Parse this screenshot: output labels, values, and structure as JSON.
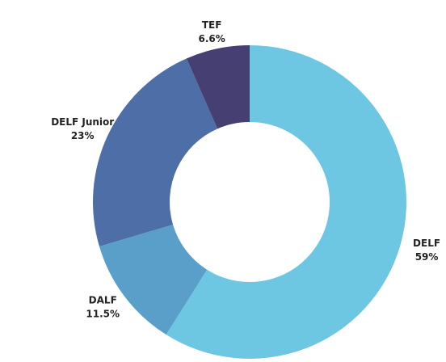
{
  "chart_data": {
    "type": "donut",
    "categories": [
      "DELF",
      "DALF",
      "DELF Junior",
      "TEF"
    ],
    "values": [
      59,
      11.5,
      23,
      6.6
    ],
    "value_labels": [
      "59%",
      "11.5%",
      "23%",
      "6.6%"
    ],
    "colors": [
      "#6ec7e2",
      "#5a9fca",
      "#4d6ea6",
      "#463f72"
    ]
  }
}
